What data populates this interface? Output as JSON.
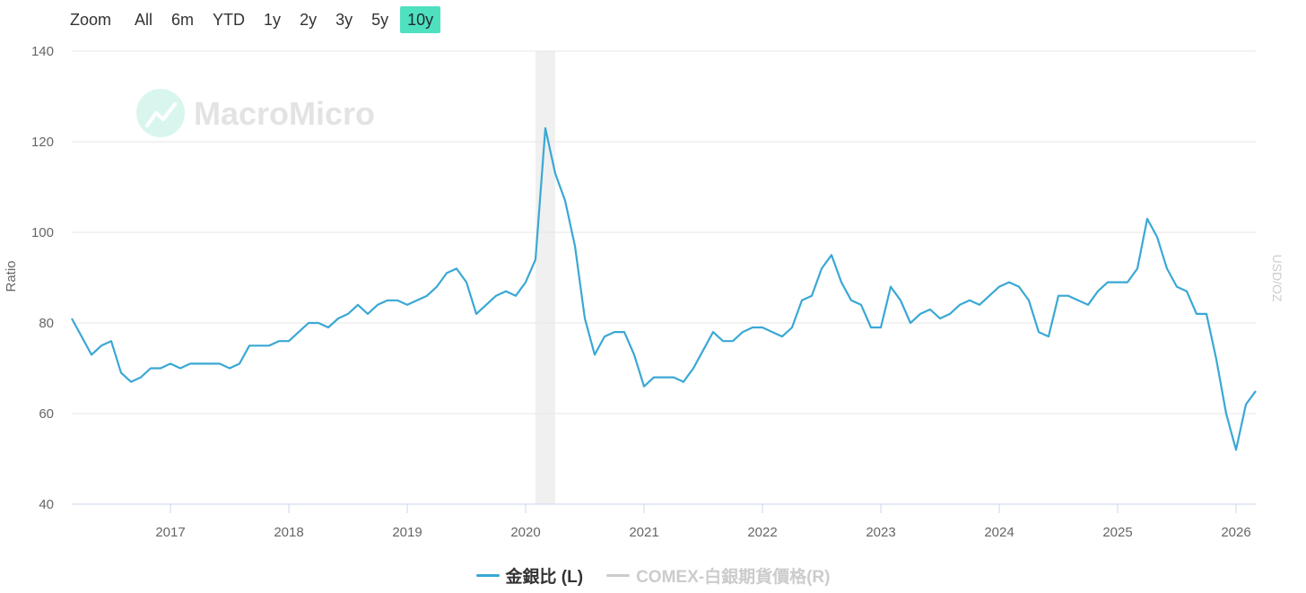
{
  "zoom": {
    "label": "Zoom",
    "buttons": [
      "All",
      "6m",
      "YTD",
      "1y",
      "2y",
      "3y",
      "5y",
      "10y"
    ],
    "active": "10y"
  },
  "watermark": "MacroMicro",
  "colors": {
    "series_main": "#3aa8d4",
    "series_hidden": "#cccccc",
    "active_zoom": "#4fe0c0",
    "gridline": "#e6e6e6",
    "recession_band": "#f0f0f0",
    "logo_circle": "#d9f6ee"
  },
  "chart_data": {
    "type": "line",
    "yaxis_left": {
      "title": "Ratio",
      "range": [
        40,
        140
      ],
      "ticks": [
        40,
        60,
        80,
        100,
        120,
        140
      ]
    },
    "yaxis_right": {
      "title": "USD/OZ"
    },
    "xaxis": {
      "range": [
        "2016-03",
        "2026-03"
      ],
      "ticks": [
        "2017",
        "2018",
        "2019",
        "2020",
        "2021",
        "2022",
        "2023",
        "2024",
        "2025",
        "2026"
      ]
    },
    "grid": true,
    "legend_placement": "bottom-center",
    "shaded_periods": [
      {
        "start": "2020-02",
        "end": "2020-04"
      }
    ],
    "series": [
      {
        "name": "金銀比 (L)",
        "axis": "left",
        "visible": true,
        "points": [
          [
            "2016-03",
            81
          ],
          [
            "2016-04",
            77
          ],
          [
            "2016-05",
            73
          ],
          [
            "2016-06",
            75
          ],
          [
            "2016-07",
            76
          ],
          [
            "2016-08",
            69
          ],
          [
            "2016-09",
            67
          ],
          [
            "2016-10",
            68
          ],
          [
            "2016-11",
            70
          ],
          [
            "2016-12",
            70
          ],
          [
            "2017-01",
            71
          ],
          [
            "2017-02",
            70
          ],
          [
            "2017-03",
            71
          ],
          [
            "2017-04",
            71
          ],
          [
            "2017-05",
            71
          ],
          [
            "2017-06",
            71
          ],
          [
            "2017-07",
            70
          ],
          [
            "2017-08",
            71
          ],
          [
            "2017-09",
            75
          ],
          [
            "2017-10",
            75
          ],
          [
            "2017-11",
            75
          ],
          [
            "2017-12",
            76
          ],
          [
            "2018-01",
            76
          ],
          [
            "2018-02",
            78
          ],
          [
            "2018-03",
            80
          ],
          [
            "2018-04",
            80
          ],
          [
            "2018-05",
            79
          ],
          [
            "2018-06",
            81
          ],
          [
            "2018-07",
            82
          ],
          [
            "2018-08",
            84
          ],
          [
            "2018-09",
            82
          ],
          [
            "2018-10",
            84
          ],
          [
            "2018-11",
            85
          ],
          [
            "2018-12",
            85
          ],
          [
            "2019-01",
            84
          ],
          [
            "2019-02",
            85
          ],
          [
            "2019-03",
            86
          ],
          [
            "2019-04",
            88
          ],
          [
            "2019-05",
            91
          ],
          [
            "2019-06",
            92
          ],
          [
            "2019-07",
            89
          ],
          [
            "2019-08",
            82
          ],
          [
            "2019-09",
            84
          ],
          [
            "2019-10",
            86
          ],
          [
            "2019-11",
            87
          ],
          [
            "2019-12",
            86
          ],
          [
            "2020-01",
            89
          ],
          [
            "2020-02",
            94
          ],
          [
            "2020-03",
            123
          ],
          [
            "2020-04",
            113
          ],
          [
            "2020-05",
            107
          ],
          [
            "2020-06",
            97
          ],
          [
            "2020-07",
            81
          ],
          [
            "2020-08",
            73
          ],
          [
            "2020-09",
            77
          ],
          [
            "2020-10",
            78
          ],
          [
            "2020-11",
            78
          ],
          [
            "2020-12",
            73
          ],
          [
            "2021-01",
            66
          ],
          [
            "2021-02",
            68
          ],
          [
            "2021-03",
            68
          ],
          [
            "2021-04",
            68
          ],
          [
            "2021-05",
            67
          ],
          [
            "2021-06",
            70
          ],
          [
            "2021-07",
            74
          ],
          [
            "2021-08",
            78
          ],
          [
            "2021-09",
            76
          ],
          [
            "2021-10",
            76
          ],
          [
            "2021-11",
            78
          ],
          [
            "2021-12",
            79
          ],
          [
            "2022-01",
            79
          ],
          [
            "2022-02",
            78
          ],
          [
            "2022-03",
            77
          ],
          [
            "2022-04",
            79
          ],
          [
            "2022-05",
            85
          ],
          [
            "2022-06",
            86
          ],
          [
            "2022-07",
            92
          ],
          [
            "2022-08",
            95
          ],
          [
            "2022-09",
            89
          ],
          [
            "2022-10",
            85
          ],
          [
            "2022-11",
            84
          ],
          [
            "2022-12",
            79
          ],
          [
            "2023-01",
            79
          ],
          [
            "2023-02",
            88
          ],
          [
            "2023-03",
            85
          ],
          [
            "2023-04",
            80
          ],
          [
            "2023-05",
            82
          ],
          [
            "2023-06",
            83
          ],
          [
            "2023-07",
            81
          ],
          [
            "2023-08",
            82
          ],
          [
            "2023-09",
            84
          ],
          [
            "2023-10",
            85
          ],
          [
            "2023-11",
            84
          ],
          [
            "2023-12",
            86
          ],
          [
            "2024-01",
            88
          ],
          [
            "2024-02",
            89
          ],
          [
            "2024-03",
            88
          ],
          [
            "2024-04",
            85
          ],
          [
            "2024-05",
            78
          ],
          [
            "2024-06",
            77
          ],
          [
            "2024-07",
            86
          ],
          [
            "2024-08",
            86
          ],
          [
            "2024-09",
            85
          ],
          [
            "2024-10",
            84
          ],
          [
            "2024-11",
            87
          ],
          [
            "2024-12",
            89
          ],
          [
            "2025-01",
            89
          ],
          [
            "2025-02",
            89
          ],
          [
            "2025-03",
            92
          ],
          [
            "2025-04",
            103
          ],
          [
            "2025-05",
            99
          ],
          [
            "2025-06",
            92
          ],
          [
            "2025-07",
            88
          ],
          [
            "2025-08",
            87
          ],
          [
            "2025-09",
            82
          ],
          [
            "2025-10",
            82
          ],
          [
            "2025-11",
            72
          ],
          [
            "2025-12",
            60
          ],
          [
            "2026-01",
            52
          ],
          [
            "2026-02",
            62
          ],
          [
            "2026-03",
            65
          ]
        ]
      },
      {
        "name": "COMEX-白銀期貨價格(R)",
        "axis": "right",
        "visible": false,
        "points": []
      }
    ]
  }
}
